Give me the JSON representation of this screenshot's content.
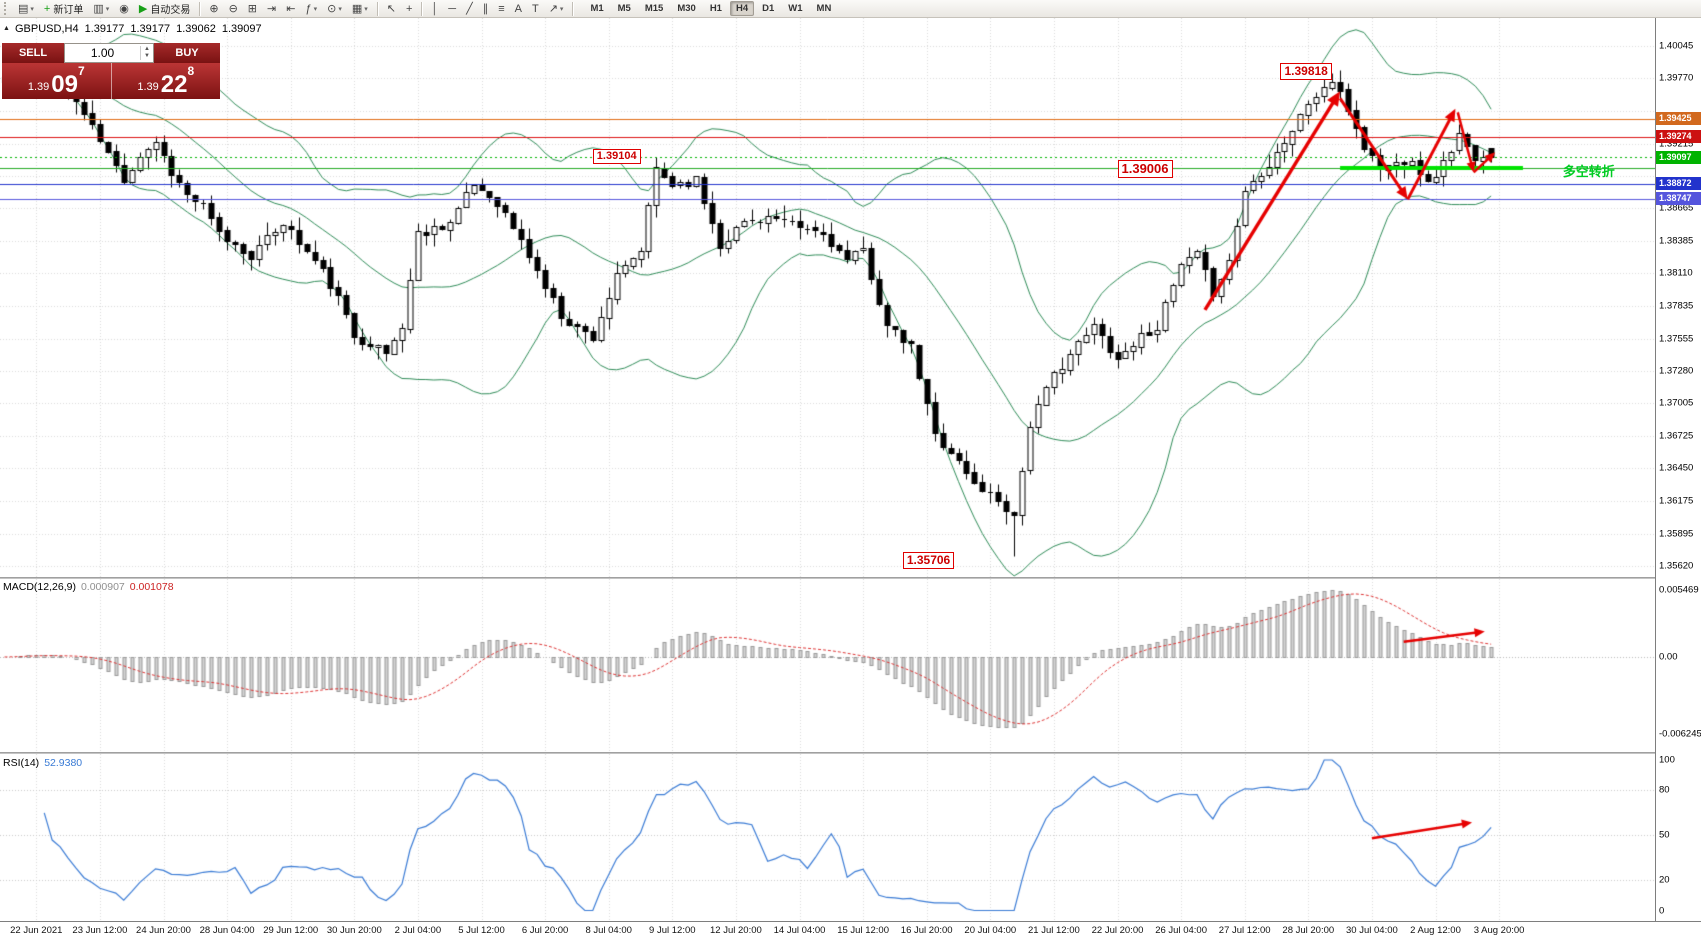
{
  "icons": {
    "caret": "▾",
    "collapse": "▲",
    "spin_up": "▲",
    "spin_down": "▼"
  },
  "colors": {
    "arrow": "#e60000",
    "bull": "#ffffff",
    "bear": "#000000",
    "candle_outline": "#000000",
    "grid": "#d9d9d9",
    "bollinger": "#2e8b57",
    "macd_hist_fill": "#d2d2d2",
    "macd_hist_stroke": "#9a9a9a",
    "macd_signal": "#dd3333",
    "rsi_line": "#3a7bd5",
    "rsi_levels": "#c8c8c8"
  },
  "toolbar": {
    "buttons": [
      {
        "name": "new-chart-button",
        "glyph": "▤",
        "caret": true
      },
      {
        "name": "new-order-button",
        "glyph": "+",
        "glyph_color": "#18a018",
        "label": "新订单"
      },
      {
        "name": "chart-profiles-button",
        "glyph": "▥",
        "caret": true
      },
      {
        "name": "alerts-button",
        "glyph": "◉"
      },
      {
        "name": "autotrade-button",
        "glyph": "▶",
        "glyph_color": "#18a018",
        "label": "自动交易"
      },
      {
        "sep": true
      },
      {
        "name": "zoom-in-button",
        "glyph": "⊕"
      },
      {
        "name": "zoom-out-button",
        "glyph": "⊖"
      },
      {
        "name": "tile-windows-button",
        "glyph": "⊞"
      },
      {
        "name": "autoscroll-button",
        "glyph": "⇥"
      },
      {
        "name": "chart-shift-button",
        "glyph": "⇤"
      },
      {
        "name": "indicators-button",
        "glyph": "ƒ",
        "caret": true
      },
      {
        "name": "periods-button",
        "glyph": "⊙",
        "caret": true
      },
      {
        "name": "templates-button",
        "glyph": "▦",
        "caret": true
      },
      {
        "sep": true
      },
      {
        "name": "cursor-tool-button",
        "glyph": "↖"
      },
      {
        "name": "crosshair-tool-button",
        "glyph": "+"
      },
      {
        "sep": true
      },
      {
        "name": "vertical-line-button",
        "glyph": "│"
      },
      {
        "name": "horizontal-line-button",
        "glyph": "─"
      },
      {
        "name": "trendline-button",
        "glyph": "╱"
      },
      {
        "name": "channel-button",
        "glyph": "∥"
      },
      {
        "name": "fibonacci-button",
        "glyph": "≡"
      },
      {
        "name": "text-tool-button",
        "glyph": "A"
      },
      {
        "name": "text-label-button",
        "glyph": "T"
      },
      {
        "name": "arrows-button",
        "glyph": "↗",
        "caret": true
      },
      {
        "sep": true
      }
    ],
    "timeframes": {
      "items": [
        "M1",
        "M5",
        "M15",
        "M30",
        "H1",
        "H4",
        "D1",
        "W1",
        "MN"
      ],
      "active": "H4"
    }
  },
  "one_click": {
    "sell_label": "SELL",
    "buy_label": "BUY",
    "lot_value": "1.00",
    "sell_price": {
      "prefix": "1.39",
      "big": "09",
      "sup": "7"
    },
    "buy_price": {
      "prefix": "1.39",
      "big": "22",
      "sup": "8"
    }
  },
  "chart_header": {
    "symbol_period": "GBPUSD,H4",
    "open": "1.39177",
    "high": "1.39177",
    "low": "1.39062",
    "close": "1.39097"
  },
  "indicators": {
    "macd": {
      "label": "MACD(12,26,9)",
      "main_value": "0.000907",
      "signal_value": "0.001078",
      "axis_labels": [
        {
          "text": "0.005469",
          "value": 0.005469
        },
        {
          "text": "0.00",
          "value": 0
        },
        {
          "text": "-0.006245",
          "value": -0.006245
        }
      ]
    },
    "rsi": {
      "label": "RSI(14)",
      "value": "52.9380",
      "levels": [
        80,
        50,
        20
      ],
      "axis_labels": [
        {
          "text": "100",
          "value": 100
        },
        {
          "text": "80",
          "value": 80
        },
        {
          "text": "50",
          "value": 50
        },
        {
          "text": "20",
          "value": 20
        },
        {
          "text": "0",
          "value": 0
        }
      ]
    }
  },
  "chart_data": {
    "type": "candlestick",
    "symbol": "GBPUSD",
    "period": "H4",
    "bars": 188,
    "price_axis": {
      "top_price": 1.40045,
      "bottom_price": 1.3562,
      "labels": [
        "1.40045",
        "1.39770",
        "1.39215",
        "1.38665",
        "1.38385",
        "1.38110",
        "1.37835",
        "1.37555",
        "1.37280",
        "1.37005",
        "1.36725",
        "1.36450",
        "1.36175",
        "1.35895",
        "1.35620"
      ],
      "grid": [
        1.40045,
        1.3977,
        1.39495,
        1.39215,
        1.3894,
        1.38665,
        1.38385,
        1.3811,
        1.37835,
        1.37555,
        1.3728,
        1.37005,
        1.36725,
        1.3645,
        1.36175,
        1.35895,
        1.3562
      ]
    },
    "price_tags": [
      {
        "text": "1.39425",
        "price": 1.39425,
        "color": "#d2691e"
      },
      {
        "text": "1.39274",
        "price": 1.39274,
        "color": "#cc1111"
      },
      {
        "text": "1.39097",
        "price": 1.39097,
        "color": "#00b300"
      },
      {
        "text": "1.38872",
        "price": 1.38872,
        "color": "#2233cc"
      },
      {
        "text": "1.38747",
        "price": 1.38747,
        "color": "#5555dd"
      }
    ],
    "hlines": [
      {
        "price": 1.39425,
        "color": "#e06a10",
        "width": 1
      },
      {
        "price": 1.39274,
        "color": "#dd1111",
        "width": 1
      },
      {
        "price": 1.39006,
        "color": "#22aa22",
        "width": 1
      },
      {
        "price": 1.38872,
        "color": "#2233cc",
        "width": 1
      },
      {
        "price": 1.38747,
        "color": "#5555dd",
        "width": 1
      }
    ],
    "current_price_line": {
      "price": 1.39097,
      "color": "#00b300"
    },
    "support_segment": {
      "price": 1.39006,
      "from_bar": 168,
      "to_bar": 191,
      "color": "#00e400",
      "width": 4
    },
    "bollinger": {
      "period": 20,
      "deviation": 2
    },
    "price_path": [
      [
        0,
        1.3974
      ],
      [
        3,
        1.3984
      ],
      [
        6,
        1.3976
      ],
      [
        9,
        1.3958
      ],
      [
        12,
        1.3924
      ],
      [
        15,
        1.3891
      ],
      [
        17,
        1.3912
      ],
      [
        19,
        1.3924
      ],
      [
        21,
        1.3898
      ],
      [
        23,
        1.3878
      ],
      [
        25,
        1.3868
      ],
      [
        27,
        1.3845
      ],
      [
        29,
        1.3835
      ],
      [
        31,
        1.3827
      ],
      [
        33,
        1.384
      ],
      [
        35,
        1.3855
      ],
      [
        37,
        1.3838
      ],
      [
        40,
        1.3813
      ],
      [
        42,
        1.379
      ],
      [
        44,
        1.3758
      ],
      [
        46,
        1.3752
      ],
      [
        48,
        1.3743
      ],
      [
        50,
        1.3766
      ],
      [
        52,
        1.3845
      ],
      [
        54,
        1.385
      ],
      [
        56,
        1.3855
      ],
      [
        59,
        1.3887
      ],
      [
        62,
        1.3872
      ],
      [
        64,
        1.385
      ],
      [
        66,
        1.3827
      ],
      [
        68,
        1.38
      ],
      [
        70,
        1.3776
      ],
      [
        72,
        1.3765
      ],
      [
        74,
        1.3758
      ],
      [
        77,
        1.3808
      ],
      [
        80,
        1.3831
      ],
      [
        82,
        1.3901
      ],
      [
        84,
        1.3887
      ],
      [
        87,
        1.3891
      ],
      [
        90,
        1.3836
      ],
      [
        93,
        1.3855
      ],
      [
        96,
        1.3859
      ],
      [
        100,
        1.385
      ],
      [
        103,
        1.3845
      ],
      [
        106,
        1.3822
      ],
      [
        108,
        1.3831
      ],
      [
        111,
        1.3766
      ],
      [
        114,
        1.3748
      ],
      [
        117,
        1.3674
      ],
      [
        119,
        1.366
      ],
      [
        122,
        1.3632
      ],
      [
        125,
        1.3619
      ],
      [
        127,
        1.3605
      ],
      [
        129,
        1.3683
      ],
      [
        132,
        1.3725
      ],
      [
        134,
        1.3743
      ],
      [
        137,
        1.3766
      ],
      [
        140,
        1.3739
      ],
      [
        143,
        1.3758
      ],
      [
        145,
        1.3766
      ],
      [
        148,
        1.3817
      ],
      [
        150,
        1.3827
      ],
      [
        152,
        1.3795
      ],
      [
        154,
        1.3822
      ],
      [
        156,
        1.3882
      ],
      [
        159,
        1.3905
      ],
      [
        162,
        1.3933
      ],
      [
        164,
        1.3956
      ],
      [
        167,
        1.3975
      ],
      [
        169,
        1.3951
      ],
      [
        171,
        1.3919
      ],
      [
        173,
        1.3901
      ],
      [
        175,
        1.3905
      ],
      [
        177,
        1.391
      ],
      [
        179,
        1.3887
      ],
      [
        181,
        1.3905
      ],
      [
        183,
        1.3929
      ],
      [
        185,
        1.3905
      ],
      [
        187,
        1.39097
      ]
    ],
    "markers": {
      "spike_high": {
        "bar": 82,
        "price": 1.39104
      },
      "swing_high": {
        "bar": 167,
        "price": 1.39818
      },
      "swing_low": {
        "bar": 127,
        "price": 1.35706
      },
      "last_bar": {
        "open": 1.39177,
        "high": 1.39177,
        "low": 1.39062,
        "close": 1.39097
      }
    },
    "callouts": [
      {
        "text": "1.39104",
        "bar": 74,
        "pos_price": 1.39104,
        "size": 11
      },
      {
        "text": "1.39006",
        "bar": 140,
        "pos_price": 1.39006,
        "size": 13
      },
      {
        "text": "1.39818",
        "bar": 160.5,
        "pos_price": 1.3983,
        "size": 12
      },
      {
        "text": "1.35706",
        "bar": 113,
        "pos_price": 1.35667,
        "size": 12
      }
    ],
    "trend_arrows": [
      {
        "from_bar": 151,
        "from_price": 1.378,
        "to_bar": 168,
        "to_price": 1.3966,
        "width": 3.5
      },
      {
        "from_bar": 168,
        "from_price": 1.396,
        "to_bar": 176.5,
        "to_price": 1.3874,
        "width": 3
      },
      {
        "from_bar": 176.5,
        "from_price": 1.3874,
        "to_bar": 182.5,
        "to_price": 1.3951,
        "width": 3
      },
      {
        "from_bar": 182.8,
        "from_price": 1.3948,
        "to_bar": 184.8,
        "to_price": 1.3897,
        "width": 2.5
      },
      {
        "from_bar": 184.8,
        "from_price": 1.3897,
        "to_bar": 187.5,
        "to_price": 1.3914,
        "width": 2.5
      }
    ],
    "macd_arrow": {
      "from_bar": 176,
      "from_value": 0.0012,
      "to_bar": 186.2,
      "to_value": 0.002,
      "width": 2.5
    },
    "rsi_arrow": {
      "from_bar": 172,
      "from_value": 48,
      "to_bar": 184.6,
      "to_value": 58.5,
      "width": 2.5
    },
    "annotation_text": {
      "label": "多空转折",
      "color": "#00cc22",
      "bar": 196,
      "pos_price": 1.3899
    },
    "time_labels": [
      "22 Jun 2021",
      "23 Jun 12:00",
      "24 Jun 20:00",
      "28 Jun 04:00",
      "29 Jun 12:00",
      "30 Jun 20:00",
      "2 Jul 04:00",
      "5 Jul 12:00",
      "6 Jul 20:00",
      "8 Jul 04:00",
      "9 Jul 12:00",
      "12 Jul 20:00",
      "14 Jul 04:00",
      "15 Jul 12:00",
      "16 Jul 20:00",
      "20 Jul 04:00",
      "21 Jul 12:00",
      "22 Jul 20:00",
      "26 Jul 04:00",
      "27 Jul 12:00",
      "28 Jul 20:00",
      "30 Jul 04:00",
      "2 Aug 12:00",
      "3 Aug 20:00"
    ],
    "first_label_bar": 4,
    "label_every": 8
  }
}
